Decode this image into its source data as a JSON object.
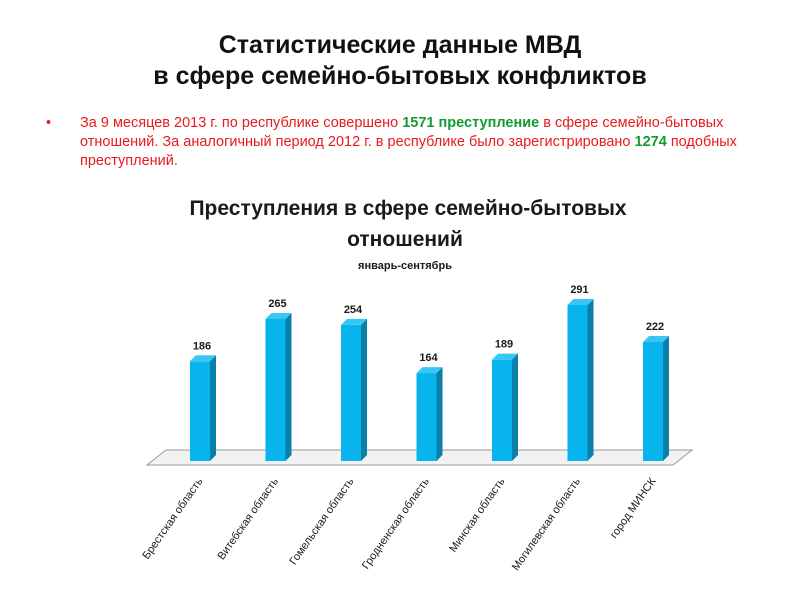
{
  "title": {
    "line1": "Статистические данные МВД",
    "line2": "в сфере семейно-бытовых конфликтов"
  },
  "bullet": {
    "part1": "За 9 месяцев 2013 г. по республике совершено ",
    "highlight1": "1571 преступление",
    "part2": " в сфере семейно-бытовых отношений.  За аналогичный период 2012 г. в республике было зарегистрировано ",
    "highlight2": "1274",
    "part3": " подобных преступлений.",
    "text_color": "#e8191f",
    "highlight_color": "#159a2e"
  },
  "chart_data": {
    "type": "bar",
    "title_line1": "Преступления в сфере семейно-бытовых",
    "title_line2": "отношений",
    "subtitle": "январь-сентябрь",
    "categories": [
      "Брестская область",
      "Витебская область",
      "Гомельская область",
      "Гродненская область",
      "Минская область",
      "Могилевская область",
      "город МИНСК"
    ],
    "values": [
      186,
      265,
      254,
      164,
      189,
      291,
      222
    ],
    "ylim": [
      0,
      291
    ],
    "grid": false,
    "legend": "none",
    "bar_color": "#08b4ee",
    "bar_side_color": "#0a7fa8",
    "bar_top_color": "#39c6f4"
  }
}
